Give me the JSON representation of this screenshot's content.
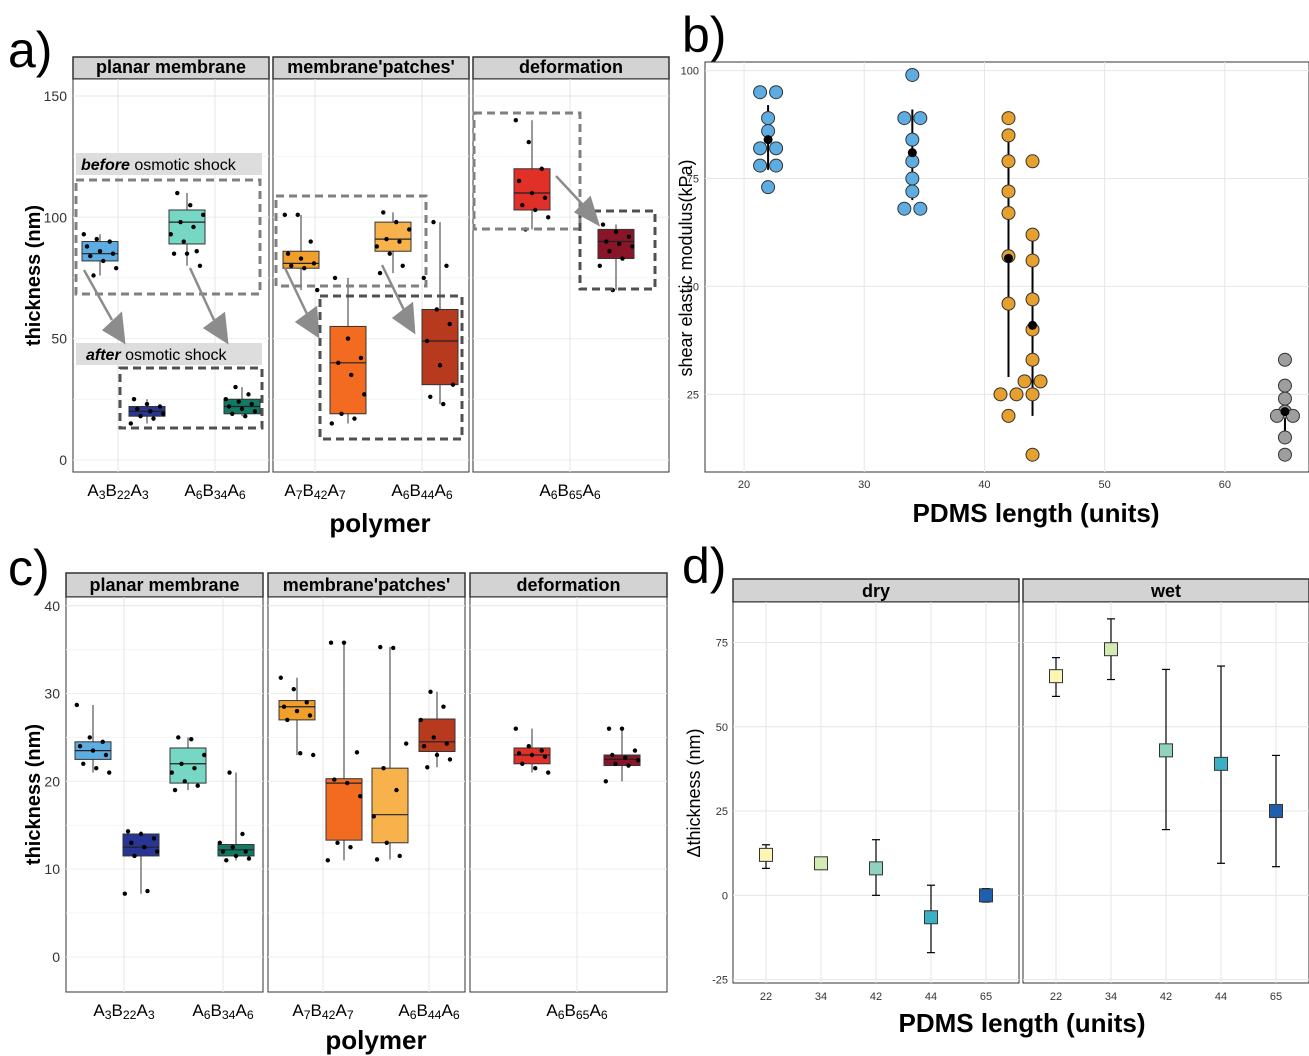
{
  "panel_labels": {
    "a": "a)",
    "b": "b)",
    "c": "c)",
    "d": "d)"
  },
  "annotations": {
    "before_bold": "before",
    "before_rest": " osmotic shock",
    "after_bold": "after",
    "after_rest": " osmotic shock"
  },
  "chart_data": [
    {
      "id": "a",
      "type": "box",
      "ylabel": "thickness (nm)",
      "xlabel": "polymer",
      "ylim": [
        -5,
        157
      ],
      "yticks": [
        0,
        50,
        100,
        150
      ],
      "facets": [
        {
          "title": "planar membrane",
          "ticks": [
            "A3B22A3",
            "A6B34A6"
          ],
          "boxes": [
            {
              "group": "A3B22A3",
              "state": "before",
              "color": "#5DADE2",
              "q1": 82,
              "median": 85,
              "q3": 90,
              "lo": 76,
              "hi": 93,
              "points": [
                93,
                91,
                90,
                88,
                86,
                85,
                84,
                82,
                79,
                76
              ]
            },
            {
              "group": "A3B22A3",
              "state": "after",
              "color": "#283593",
              "q1": 18,
              "median": 20,
              "q3": 22,
              "lo": 15,
              "hi": 25,
              "points": [
                25,
                23,
                22,
                21,
                20,
                19,
                18,
                17,
                15
              ]
            },
            {
              "group": "A6B34A6",
              "state": "before",
              "color": "#76D7C4",
              "q1": 89,
              "median": 98,
              "q3": 103,
              "lo": 80,
              "hi": 110,
              "points": [
                110,
                105,
                101,
                98,
                96,
                93,
                90,
                86,
                85,
                85,
                80
              ]
            },
            {
              "group": "A6B34A6",
              "state": "after",
              "color": "#117A65",
              "q1": 19,
              "median": 22,
              "q3": 25,
              "lo": 18,
              "hi": 30,
              "points": [
                30,
                27,
                25,
                24,
                23,
                22,
                21,
                20,
                19,
                18
              ]
            }
          ]
        },
        {
          "title": "membrane'patches'",
          "ticks": [
            "A7B42A7",
            "A6B44A6"
          ],
          "boxes": [
            {
              "group": "A7B42A7",
              "state": "before",
              "color": "#F0A02A",
              "q1": 79,
              "median": 81,
              "q3": 86,
              "lo": 70,
              "hi": 101,
              "points": [
                101,
                101,
                90,
                85,
                83,
                81,
                80,
                79,
                70
              ]
            },
            {
              "group": "A7B42A7",
              "state": "after",
              "color": "#F26B21",
              "q1": 19,
              "median": 40,
              "q3": 55,
              "lo": 15,
              "hi": 75,
              "points": [
                75,
                50,
                42,
                40,
                35,
                27,
                19,
                17,
                15
              ]
            },
            {
              "group": "A6B44A6",
              "state": "before",
              "color": "#F8B24B",
              "q1": 86,
              "median": 91,
              "q3": 98,
              "lo": 77,
              "hi": 102,
              "points": [
                102,
                98,
                95,
                91,
                90,
                88,
                85,
                80,
                77
              ]
            },
            {
              "group": "A6B44A6",
              "state": "after",
              "color": "#B83A1E",
              "q1": 31,
              "median": 49,
              "q3": 62,
              "lo": 23,
              "hi": 98,
              "points": [
                98,
                80,
                75,
                62,
                56,
                49,
                39,
                31,
                26,
                23
              ]
            }
          ]
        },
        {
          "title": "deformation",
          "ticks": [
            "A6B65A6"
          ],
          "boxes": [
            {
              "group": "A6B65A6",
              "state": "before",
              "color": "#E03028",
              "q1": 103,
              "median": 110,
              "q3": 120,
              "lo": 95,
              "hi": 140,
              "points": [
                140,
                131,
                120,
                115,
                110,
                108,
                105,
                103,
                100,
                95
              ]
            },
            {
              "group": "A6B65A6",
              "state": "after",
              "color": "#8B1528",
              "q1": 83,
              "median": 90,
              "q3": 95,
              "lo": 70,
              "hi": 97,
              "points": [
                97,
                94,
                92,
                90,
                89,
                88,
                86,
                83,
                80,
                70
              ]
            }
          ]
        }
      ]
    },
    {
      "id": "b",
      "type": "scatter",
      "ylabel": "shear elastic modulus(kPa)",
      "xlabel": "PDMS length (units)",
      "xlim": [
        18,
        67
      ],
      "ylim": [
        7,
        102
      ],
      "xticks": [
        20,
        30,
        40,
        50,
        60
      ],
      "yticks": [
        25,
        50,
        75,
        100
      ],
      "groups": [
        {
          "x": 22,
          "color": "#5DADE2",
          "mean": 84,
          "lo": 77,
          "hi": 92,
          "points": [
            95,
            95,
            89,
            86,
            82,
            82,
            78,
            78,
            73
          ]
        },
        {
          "x": 34,
          "color": "#5DADE2",
          "mean": 81,
          "lo": 70,
          "hi": 91,
          "points": [
            99,
            89,
            89,
            84,
            79,
            75,
            72,
            68,
            68
          ]
        },
        {
          "x": 42,
          "color": "#E6A02D",
          "mean": 56.5,
          "lo": 29,
          "hi": 84,
          "points": [
            89,
            85,
            79,
            72,
            67,
            57,
            46,
            25,
            25,
            20
          ]
        },
        {
          "x": 44,
          "color": "#E6A02D",
          "mean": 41,
          "lo": 20,
          "hi": 62,
          "points": [
            79,
            62,
            56,
            47,
            40,
            33,
            28,
            28,
            25,
            11
          ]
        },
        {
          "x": 65,
          "color": "#9E9E9E",
          "mean": 21,
          "lo": 15,
          "hi": 27,
          "points": [
            33,
            27,
            24,
            21,
            20,
            20,
            15,
            11
          ]
        }
      ]
    },
    {
      "id": "c",
      "type": "box",
      "ylabel": "thickness (nm)",
      "xlabel": "polymer",
      "ylim": [
        -4,
        41
      ],
      "yticks": [
        0,
        10,
        20,
        30,
        40
      ],
      "facets": [
        {
          "title": "planar membrane",
          "ticks": [
            "A3B22A3",
            "A6B34A6"
          ],
          "boxes": [
            {
              "group": "A3B22A3",
              "color": "#5DADE2",
              "q1": 22.5,
              "median": 23.5,
              "q3": 24.5,
              "lo": 21,
              "hi": 28.7,
              "points": [
                28.7,
                25,
                24.5,
                24,
                23.5,
                23,
                22,
                21.5,
                21
              ]
            },
            {
              "group": "A3B22A3",
              "color": "#283593",
              "q1": 11.5,
              "median": 12.5,
              "q3": 14,
              "lo": 7.2,
              "hi": 14.3,
              "points": [
                14.3,
                14,
                13.5,
                13,
                12.5,
                12,
                11.5,
                7.5,
                7.2
              ]
            },
            {
              "group": "A6B34A6",
              "color": "#76D7C4",
              "q1": 19.8,
              "median": 22,
              "q3": 23.8,
              "lo": 19,
              "hi": 25,
              "points": [
                25,
                24.8,
                23,
                22,
                21.5,
                21,
                20,
                19.5,
                19
              ]
            },
            {
              "group": "A6B34A6",
              "color": "#117A65",
              "q1": 11.5,
              "median": 12.2,
              "q3": 12.8,
              "lo": 11,
              "hi": 21,
              "points": [
                21,
                14,
                13,
                12.5,
                12,
                12,
                11.5,
                11.2,
                11
              ]
            }
          ]
        },
        {
          "title": "membrane'patches'",
          "ticks": [
            "A7B42A7",
            "A6B44A6"
          ],
          "boxes": [
            {
              "group": "A7B42A7",
              "color": "#F0A02A",
              "q1": 27,
              "median": 28.5,
              "q3": 29.2,
              "lo": 23,
              "hi": 31.8,
              "points": [
                31.8,
                30.5,
                29,
                28.5,
                28,
                27.5,
                27,
                23.2,
                23
              ]
            },
            {
              "group": "A7B42A7",
              "color": "#F26B21",
              "q1": 13.3,
              "median": 19.8,
              "q3": 20.3,
              "lo": 11,
              "hi": 35.8,
              "points": [
                35.8,
                35.8,
                23.3,
                20.2,
                19.8,
                18.3,
                13,
                12.5,
                11
              ]
            },
            {
              "group": "A6B44A6",
              "color": "#F8B24B",
              "q1": 13,
              "median": 16.2,
              "q3": 21.5,
              "lo": 11.1,
              "hi": 35.3,
              "points": [
                35.3,
                35.2,
                24.3,
                21.5,
                19,
                16,
                13,
                11.5,
                11.1
              ]
            },
            {
              "group": "A6B44A6",
              "color": "#B83A1E",
              "q1": 23.4,
              "median": 24.5,
              "q3": 27.1,
              "lo": 21.6,
              "hi": 30.2,
              "points": [
                30.2,
                28.5,
                27,
                25,
                24.3,
                24,
                23,
                22.5,
                21.6
              ]
            }
          ]
        },
        {
          "title": "deformation",
          "ticks": [
            "A6B65A6"
          ],
          "boxes": [
            {
              "group": "A6B65A6",
              "color": "#E03028",
              "q1": 22,
              "median": 23,
              "q3": 23.8,
              "lo": 21,
              "hi": 26,
              "points": [
                26,
                24,
                23.5,
                23.2,
                23,
                22.8,
                22,
                21.5,
                21
              ]
            },
            {
              "group": "A6B65A6",
              "color": "#8B1528",
              "q1": 21.8,
              "median": 22.5,
              "q3": 23,
              "lo": 20,
              "hi": 26,
              "points": [
                26,
                26,
                23.5,
                23,
                22.7,
                22.4,
                22,
                21.8,
                20
              ]
            }
          ]
        }
      ]
    },
    {
      "id": "d",
      "type": "errorbar",
      "ylabel": "Δthickness (nm)",
      "xlabel": "PDMS length (units)",
      "ylim": [
        -26,
        87
      ],
      "yticks": [
        -25,
        0,
        25,
        50,
        75
      ],
      "categories": [
        "22",
        "34",
        "42",
        "44",
        "65"
      ],
      "facets": [
        {
          "title": "dry",
          "points": [
            {
              "x": "22",
              "color": "#FDF5B3",
              "y": 12,
              "lo": 8,
              "hi": 15
            },
            {
              "x": "34",
              "color": "#D3EAB3",
              "y": 9.5,
              "lo": 8.5,
              "hi": 10.5
            },
            {
              "x": "42",
              "color": "#8FD2BF",
              "y": 8,
              "lo": 0,
              "hi": 16.5
            },
            {
              "x": "44",
              "color": "#3BB0C4",
              "y": -6.5,
              "lo": -17,
              "hi": 3
            },
            {
              "x": "65",
              "color": "#1F5FAE",
              "y": 0,
              "lo": -2,
              "hi": 2
            }
          ]
        },
        {
          "title": "wet",
          "points": [
            {
              "x": "22",
              "color": "#FDF5B3",
              "y": 65,
              "lo": 59,
              "hi": 70.5
            },
            {
              "x": "34",
              "color": "#D3EAB3",
              "y": 73,
              "lo": 64,
              "hi": 82
            },
            {
              "x": "42",
              "color": "#8FD2BF",
              "y": 43,
              "lo": 19.5,
              "hi": 67
            },
            {
              "x": "44",
              "color": "#3BB0C4",
              "y": 39,
              "lo": 9.5,
              "hi": 68
            },
            {
              "x": "65",
              "color": "#1F5FAE",
              "y": 25,
              "lo": 8.5,
              "hi": 41.5
            }
          ]
        }
      ]
    }
  ]
}
